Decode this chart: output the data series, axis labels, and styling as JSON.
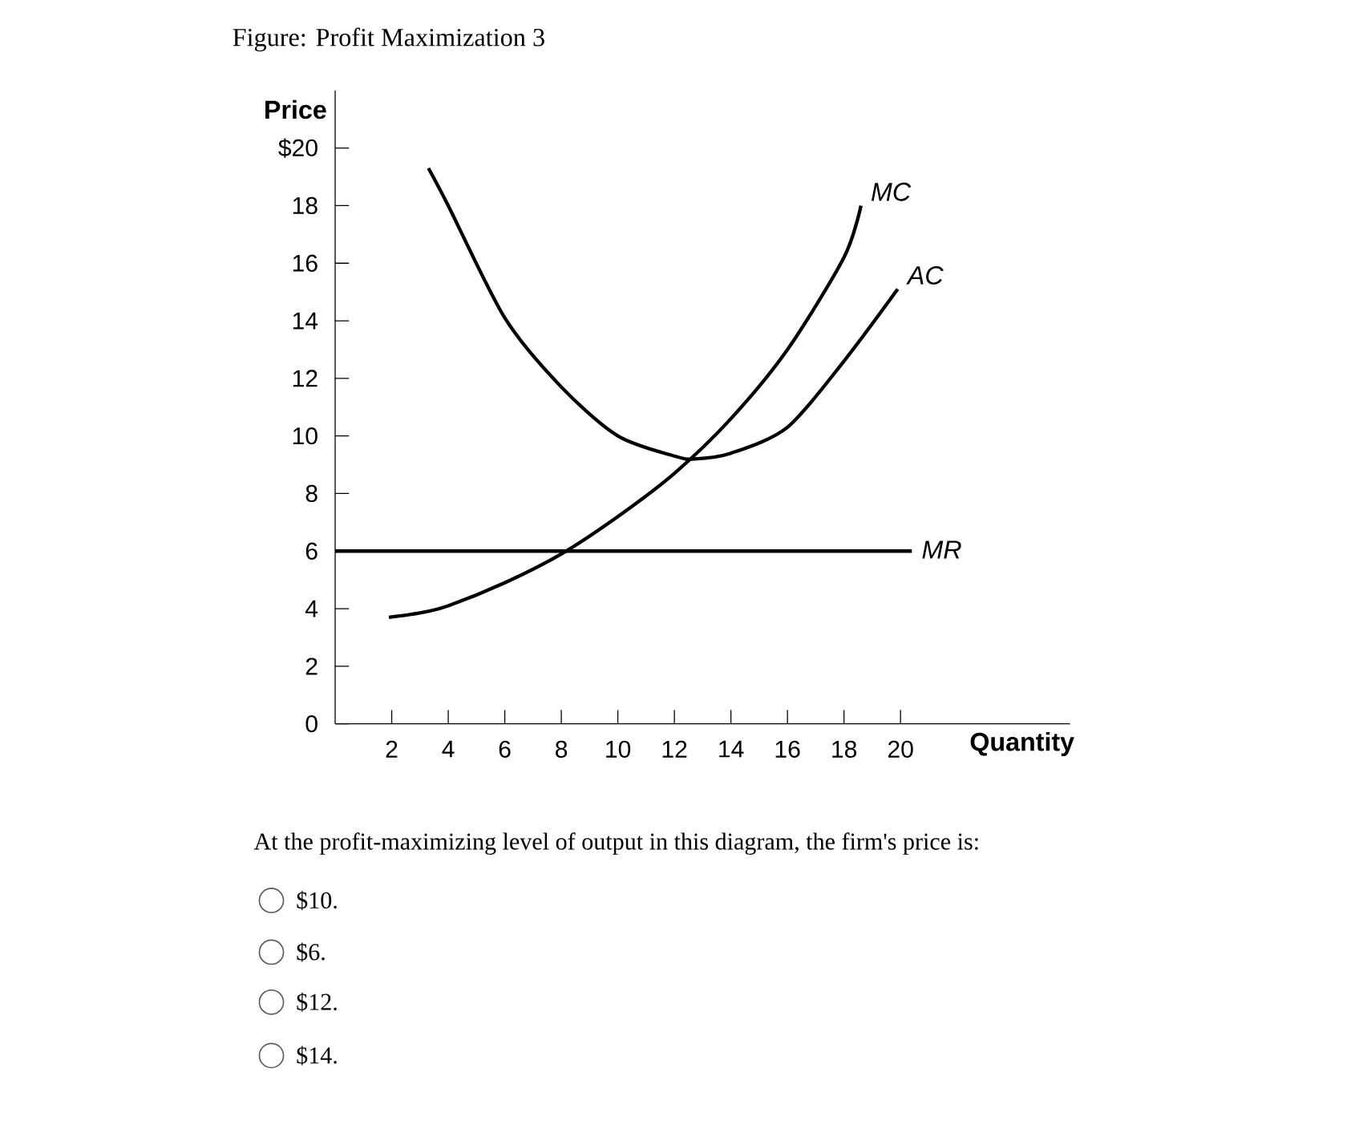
{
  "chart_data": {
    "type": "line",
    "title": "Figure: Profit Maximization 3",
    "xlabel": "Quantity",
    "ylabel": "Price",
    "xlim": [
      0,
      26
    ],
    "ylim": [
      0,
      22
    ],
    "xticks": [
      2,
      4,
      6,
      8,
      10,
      12,
      14,
      16,
      18,
      20
    ],
    "yticks": [
      0,
      2,
      4,
      6,
      8,
      10,
      12,
      14,
      16,
      18,
      {
        "value": 20,
        "label": "$20"
      }
    ],
    "line_style": "solid",
    "series": [
      {
        "name": "MC",
        "color": "#000000",
        "x": [
          1.9,
          3,
          4,
          6,
          8,
          10,
          12,
          14,
          16,
          18,
          18.6
        ],
        "values": [
          3.7,
          3.85,
          4.1,
          4.9,
          5.9,
          7.2,
          8.7,
          10.6,
          13.0,
          16.2,
          18.0
        ]
      },
      {
        "name": "AC",
        "color": "#000000",
        "x": [
          3.3,
          4,
          6,
          8,
          10,
          12,
          12.7,
          14,
          16,
          18,
          19.9
        ],
        "values": [
          19.3,
          18.0,
          14.1,
          11.7,
          10.0,
          9.3,
          9.2,
          9.4,
          10.3,
          12.6,
          15.1
        ]
      },
      {
        "name": "MR",
        "color": "#000000",
        "x": [
          0,
          20.4
        ],
        "values": [
          6,
          6
        ]
      }
    ],
    "annotations": [
      "At the profit-maximizing level of output in this diagram, the firm's price is:",
      "$10.",
      "$6.",
      "$12.",
      "$14."
    ]
  }
}
